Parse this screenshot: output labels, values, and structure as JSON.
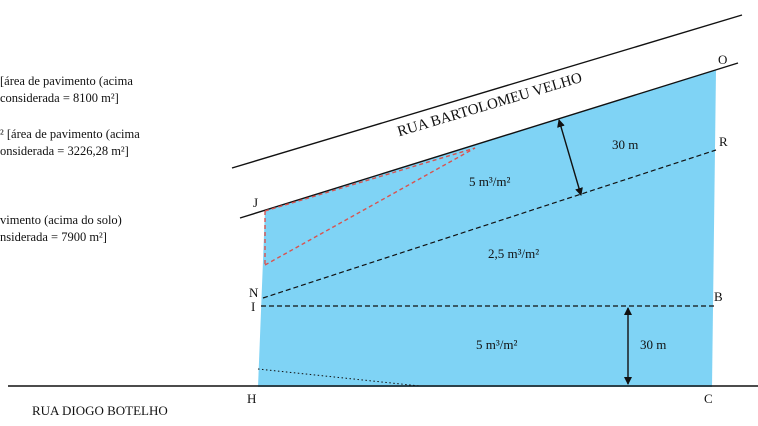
{
  "notes": [
    {
      "line1": "[área de pavimento (acima",
      "line2": "considerada = 8100 m²]"
    },
    {
      "line1": "² [área de pavimento (acima",
      "line2": "onsiderada = 3226,28 m²]"
    },
    {
      "line1": "vimento (acima do solo)",
      "line2": "nsiderada = 7900 m²]"
    }
  ],
  "streets": {
    "top": "RUA BARTOLOMEU VELHO",
    "bottom": "RUA DIOGO BOTELHO"
  },
  "points": {
    "O": "O",
    "R": "R",
    "J": "J",
    "N": "N",
    "I": "I",
    "B": "B",
    "H": "H",
    "C": "C"
  },
  "zones": {
    "upper": "5 m³/m²",
    "middle": "2,5 m³/m²",
    "lower": "5 m³/m²"
  },
  "dimensions": {
    "top_depth": "30 m",
    "bottom_depth": "30 m"
  },
  "colors": {
    "lot_fill": "#7fd3f5",
    "red_dashed": "#d9534f",
    "line": "#111111"
  }
}
